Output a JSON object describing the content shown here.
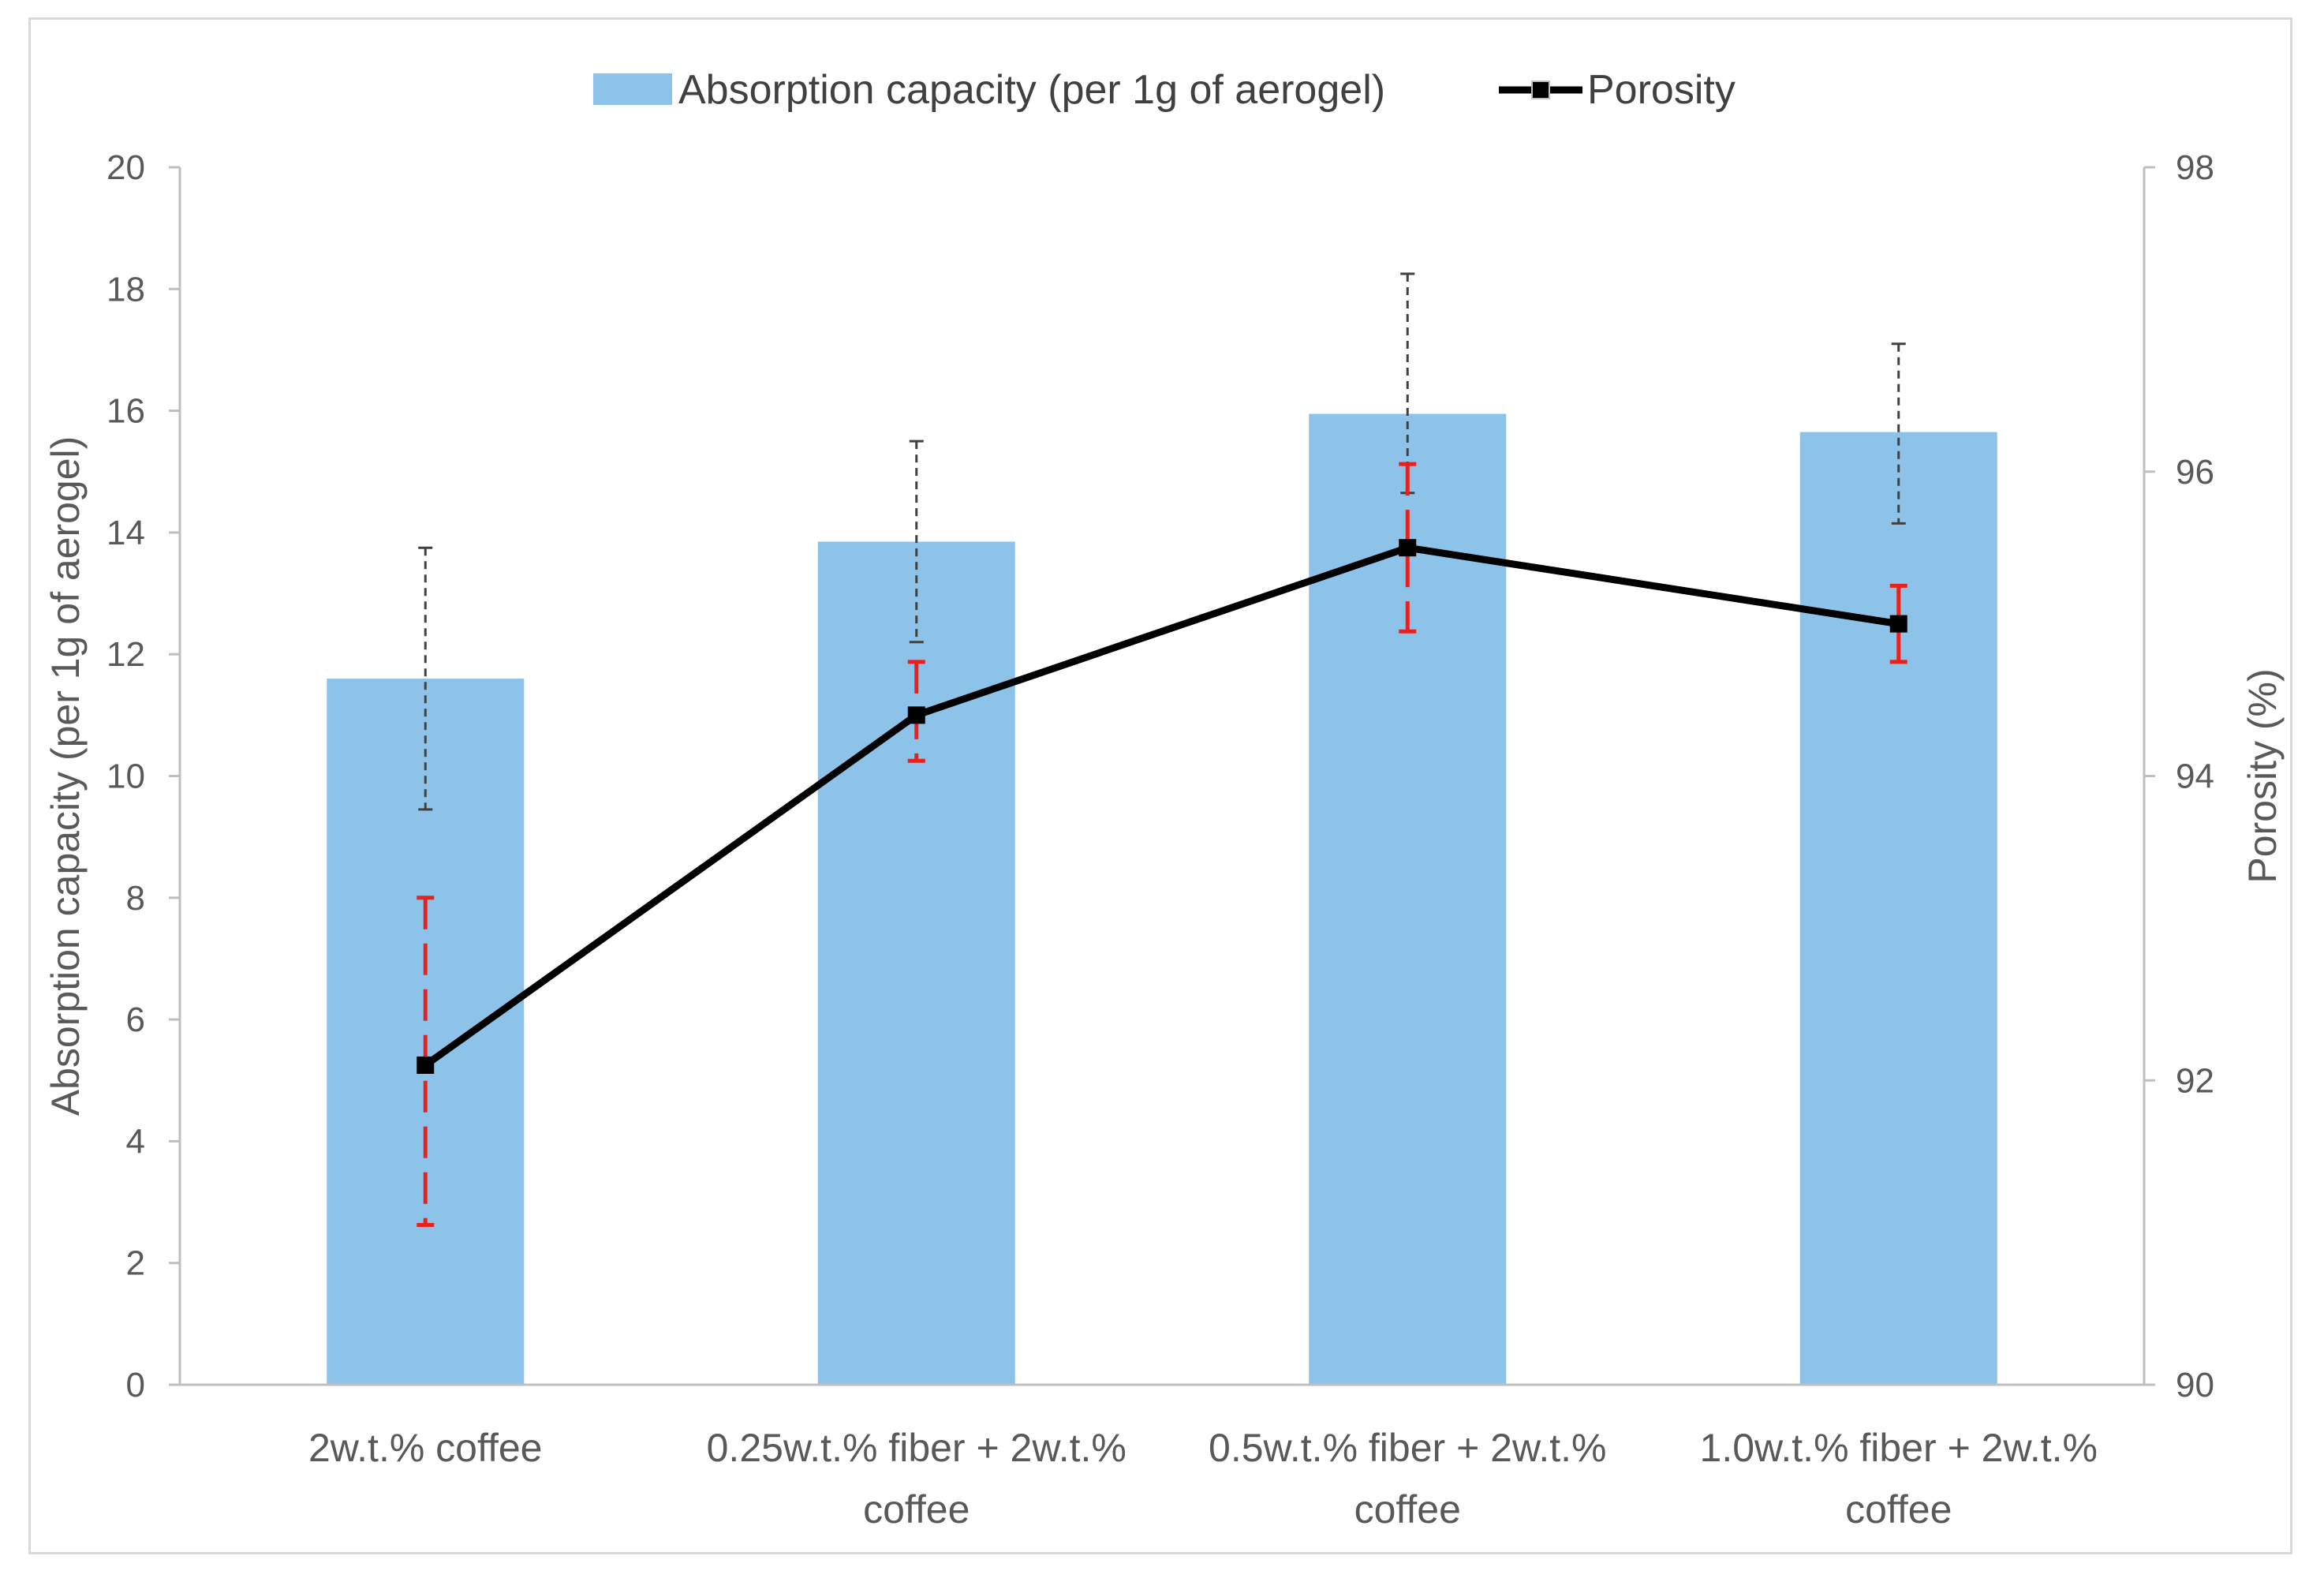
{
  "chart_data": {
    "type": "bar",
    "title": "",
    "categories": [
      [
        "2w.t.% coffee"
      ],
      [
        "0.25w.t.% fiber + 2w.t.%",
        "coffee"
      ],
      [
        "0.5w.t.% fiber + 2w.t.%",
        "coffee"
      ],
      [
        "1.0w.t.% fiber + 2w.t.%",
        "coffee"
      ]
    ],
    "series": [
      {
        "name": "Absorption capacity (per 1g of aerogel)",
        "type": "bar",
        "axis": "left",
        "color": "#8dc3e8",
        "values": [
          11.6,
          13.85,
          15.95,
          15.65
        ],
        "error_low": [
          9.45,
          12.2,
          14.65,
          14.15
        ],
        "error_high": [
          13.75,
          15.5,
          18.25,
          17.1
        ],
        "error_color": "#404040"
      },
      {
        "name": "Porosity",
        "type": "line",
        "axis": "right",
        "color": "#000000",
        "values": [
          92.1,
          94.4,
          95.5,
          95.0
        ],
        "error_low": [
          91.05,
          94.1,
          94.95,
          94.75
        ],
        "error_high": [
          93.2,
          94.75,
          96.05,
          95.25
        ],
        "error_color": "#e8211d"
      }
    ],
    "ylabel": "Absorption capacity (per 1g of aerogel)",
    "y2label": "Porosity  (%)",
    "ylim": [
      0,
      20
    ],
    "yticks": [
      "0",
      "2",
      "4",
      "6",
      "8",
      "10",
      "12",
      "14",
      "16",
      "18",
      "20"
    ],
    "y2lim": [
      90,
      98
    ],
    "y2ticks": [
      "90",
      "92",
      "94",
      "96",
      "98"
    ],
    "legend_position": "top-center",
    "grid": false
  }
}
